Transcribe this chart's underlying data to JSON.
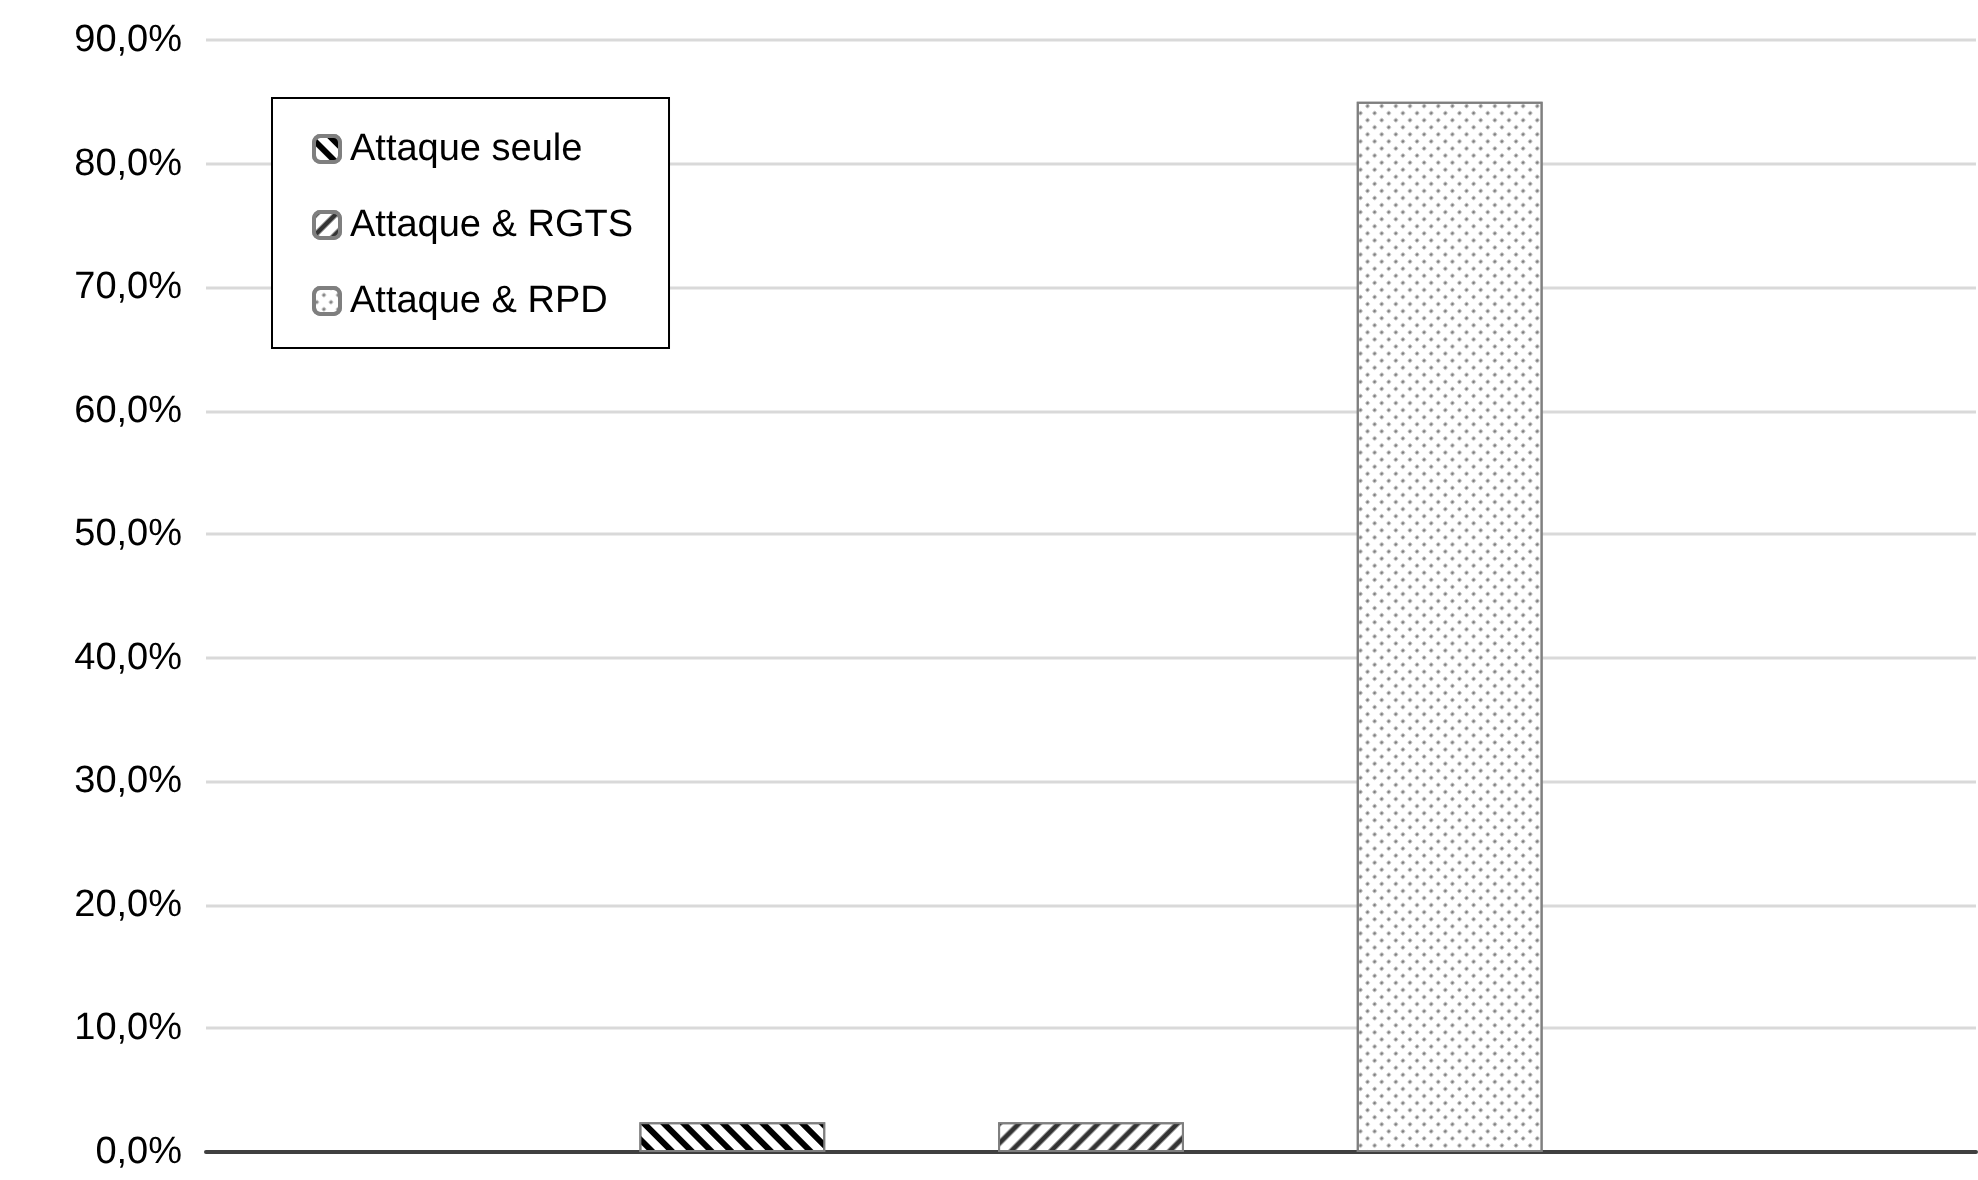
{
  "chart_data": {
    "type": "bar",
    "categories": [
      null
    ],
    "series": [
      {
        "name": "Attaque seule",
        "color": "#ffffff",
        "values": [
          2.4
        ]
      },
      {
        "name": "Attaque & RGTS",
        "color": "#ffffff",
        "values": [
          2.4
        ]
      },
      {
        "name": "Attaque & RPD",
        "color": "#ffffff",
        "values": [
          85
        ]
      }
    ],
    "ylim": [
      0,
      90
    ],
    "yticks": [
      {
        "value": 0,
        "label": "0,0%"
      },
      {
        "value": 10,
        "label": "10,0%"
      },
      {
        "value": 20,
        "label": "20,0%"
      },
      {
        "value": 30,
        "label": "30,0%"
      },
      {
        "value": 40,
        "label": "40,0%"
      },
      {
        "value": 50,
        "label": "50,0%"
      },
      {
        "value": 60,
        "label": "60,0%"
      },
      {
        "value": 70,
        "label": "70,0%"
      },
      {
        "value": 80,
        "label": "80,0%"
      },
      {
        "value": 90,
        "label": "90,0%"
      }
    ],
    "grid": "y",
    "legend": "top left",
    "tick_labels": "y"
  }
}
